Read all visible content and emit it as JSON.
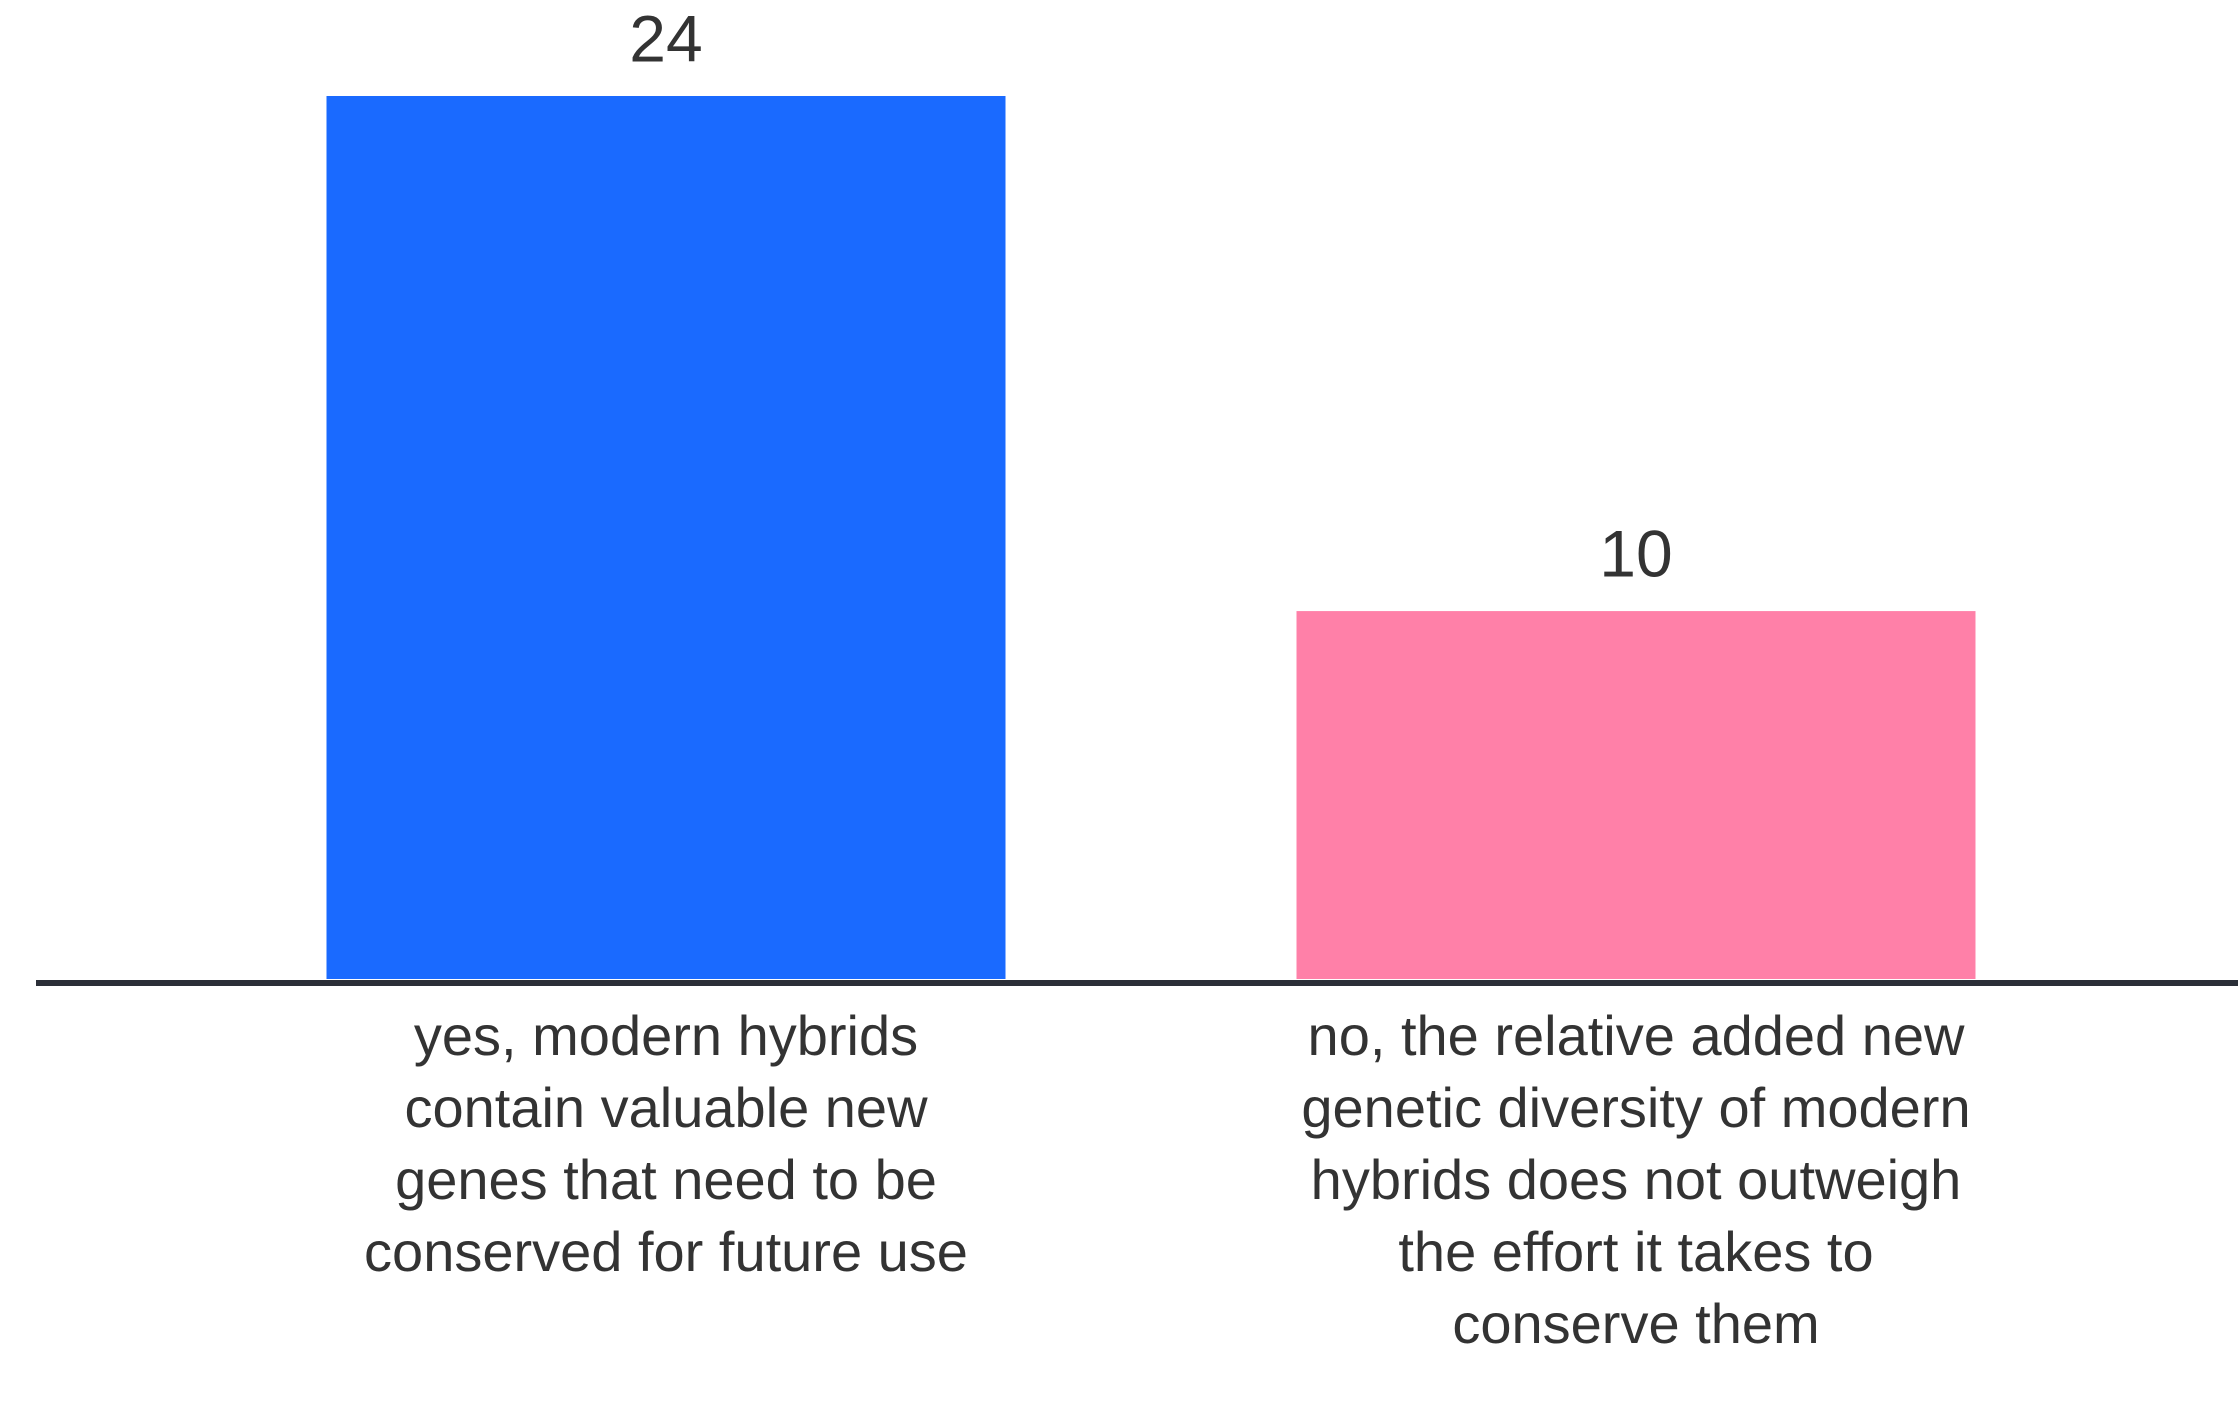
{
  "chart_data": {
    "type": "bar",
    "categories": [
      "yes, modern hybrids contain valuable new genes that need to be conserved for future use",
      "no, the relative added new genetic diversity of modern hybrids does not outweigh the effort it takes to conserve them"
    ],
    "values": [
      24,
      10
    ],
    "colors": [
      "#1a6aff",
      "#ff80a8"
    ]
  }
}
